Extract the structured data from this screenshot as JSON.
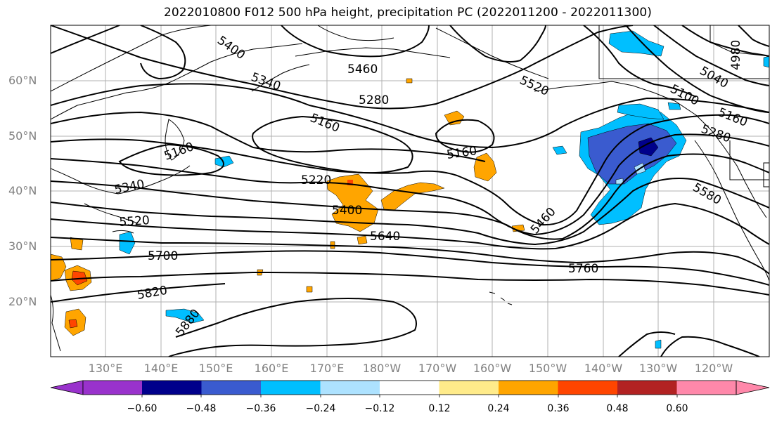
{
  "title": "2022010800 F012 500 hPa height, precipitation PC (2022011200 - 2022011300)",
  "lat_labels": [
    "60°N",
    "50°N",
    "40°N",
    "30°N",
    "20°N"
  ],
  "lon_labels": [
    "130°E",
    "140°E",
    "150°E",
    "160°E",
    "170°E",
    "180°W",
    "170°W",
    "160°W",
    "150°W",
    "140°W",
    "130°W",
    "120°W"
  ],
  "contour_labels": [
    "5400",
    "5460",
    "5340",
    "5280",
    "5160",
    "5160",
    "5160",
    "5220",
    "5340",
    "5400",
    "5520",
    "5640",
    "5460",
    "5700",
    "5760",
    "5820",
    "5880",
    "5520",
    "5100",
    "5040",
    "4980",
    "5160",
    "5280",
    "5580"
  ],
  "colorbar": {
    "ticks": [
      "−0.60",
      "−0.48",
      "−0.36",
      "−0.24",
      "−0.12",
      "0.12",
      "0.24",
      "0.36",
      "0.48",
      "0.60"
    ],
    "colors": [
      "#9932CC",
      "#00008B",
      "#3A5BCF",
      "#00BFFF",
      "#ADE2FF",
      "#FFFFFF",
      "#FFEB8A",
      "#FFA500",
      "#FF4500",
      "#B22222",
      "#FF88AA",
      "#FF88AA"
    ]
  },
  "fill_colors": {
    "light_orange": "#FFEB8A",
    "orange": "#FFA500",
    "red_orange": "#FF4500",
    "dark_red": "#B22222",
    "light_blue": "#ADE2FF",
    "cyan": "#00BFFF",
    "blue": "#3A5BCF",
    "navy": "#00008B"
  }
}
